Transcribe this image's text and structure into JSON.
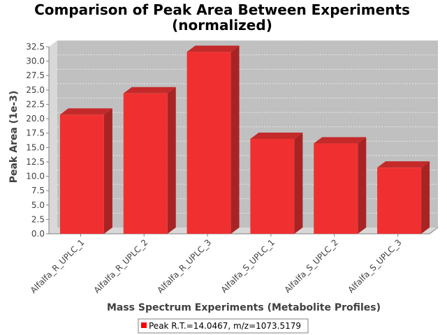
{
  "chart_data": {
    "type": "bar",
    "title": "Comparison of Peak Area Between Experiments",
    "subtitle": "(normalized)",
    "xlabel": "Mass Spectrum Experiments (Metabolite Profiles)",
    "ylabel": "Peak Area (1e-3)",
    "categories": [
      "Alfalfa_R_UPLC_1",
      "Alfalfa_R_UPLC_2",
      "Alfalfa_R_UPLC_3",
      "Alfalfa_S_UPLC_1",
      "Alfalfa_S_UPLC_2",
      "Alfalfa_S_UPLC_3"
    ],
    "series": [
      {
        "name": "Peak R.T.=14.0467, m/z=1073.5179",
        "values": [
          20.7,
          24.4,
          31.6,
          16.5,
          15.7,
          11.5
        ]
      }
    ],
    "ylim": [
      0,
      32.5
    ],
    "yticks": [
      0.0,
      2.5,
      5.0,
      7.5,
      10.0,
      12.5,
      15.0,
      17.5,
      20.0,
      22.5,
      25.0,
      27.5,
      30.0,
      32.5
    ],
    "grid": true,
    "legend_position": "bottom-center",
    "colors": {
      "bar_front": "#f03030",
      "bar_side": "#a82424",
      "bar_top": "#c42a2a",
      "plot_back": "#c0c0c0",
      "plot_wall": "#d8d8d8",
      "grid": "#e8e8e8"
    }
  }
}
